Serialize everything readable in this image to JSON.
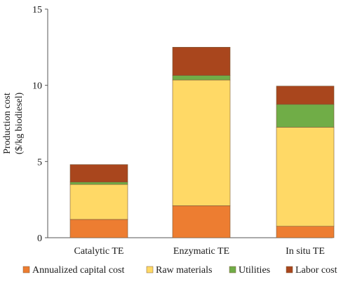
{
  "chart_data": {
    "type": "bar",
    "stacked": true,
    "categories": [
      "Catalytic TE",
      "Enzymatic TE",
      "In situ TE"
    ],
    "series": [
      {
        "name": "Annualized capital cost",
        "color": "#ED7D31",
        "values": [
          1.2,
          2.1,
          0.75
        ]
      },
      {
        "name": "Raw materials",
        "color": "#FFD966",
        "values": [
          2.3,
          8.25,
          6.5
        ]
      },
      {
        "name": "Utilities",
        "color": "#70AD47",
        "values": [
          0.15,
          0.3,
          1.5
        ]
      },
      {
        "name": "Labor cost",
        "color": "#A9461D",
        "values": [
          1.15,
          1.85,
          1.2
        ]
      }
    ],
    "ylabel_line1": "Production cost",
    "ylabel_line2": "($/kg biodiesel)",
    "ylim": [
      0,
      15
    ],
    "yticks": [
      0,
      5,
      10,
      15
    ],
    "grid": false,
    "legend_position": "bottom"
  }
}
